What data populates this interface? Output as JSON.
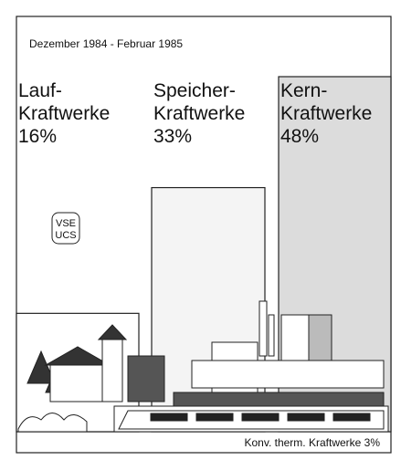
{
  "chart_data": {
    "type": "bar",
    "title": "Dezember 1984 - Februar 1985",
    "categories": [
      [
        "Lauf-",
        "Kraftwerke"
      ],
      [
        "Speicher-",
        "Kraftwerke"
      ],
      [
        "Kern-",
        "Kraftwerke"
      ]
    ],
    "values": [
      16,
      33,
      48
    ],
    "value_labels": [
      "16%",
      "33%",
      "48%"
    ],
    "colors": [
      "#ffffff",
      "#f4f4f4",
      "#dcdcdc"
    ],
    "logo": [
      "VSE",
      "UCS"
    ],
    "note": "Konv. therm. Kraftwerke 3%"
  }
}
